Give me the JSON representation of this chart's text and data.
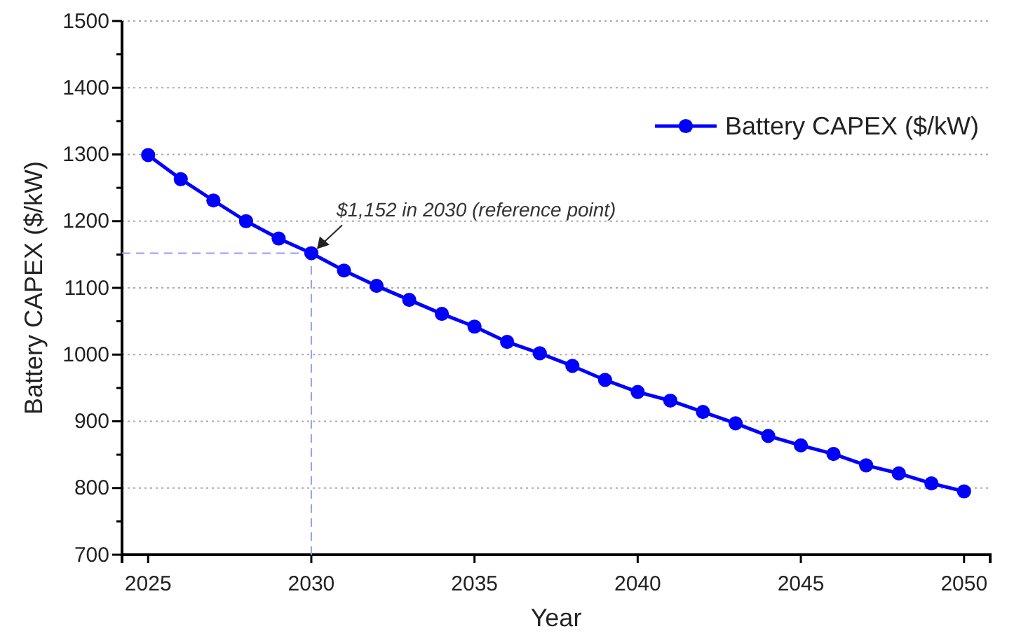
{
  "chart_data": {
    "type": "line",
    "xlabel": "Year",
    "ylabel": "Battery CAPEX ($/kW)",
    "x": [
      2025,
      2026,
      2027,
      2028,
      2029,
      2030,
      2031,
      2032,
      2033,
      2034,
      2035,
      2036,
      2037,
      2038,
      2039,
      2040,
      2041,
      2042,
      2043,
      2044,
      2045,
      2046,
      2047,
      2048,
      2049,
      2050
    ],
    "series": [
      {
        "name": "Battery CAPEX ($/kW)",
        "color": "#0000ff",
        "values": [
          1299,
          1263,
          1231,
          1200,
          1174,
          1152,
          1126,
          1103,
          1082,
          1061,
          1042,
          1019,
          1002,
          983,
          962,
          944,
          931,
          914,
          897,
          878,
          864,
          851,
          834,
          822,
          807,
          795
        ]
      }
    ],
    "xlim": [
      2024.2,
      2050.8
    ],
    "xticks": [
      2025,
      2030,
      2035,
      2040,
      2045,
      2050
    ],
    "ylim": [
      700,
      1500
    ],
    "yticks": [
      700,
      {
        "value": 750,
        "label": null
      },
      800,
      {
        "value": 850,
        "label": null
      },
      900,
      {
        "value": 950,
        "label": null
      },
      1000,
      {
        "value": 1050,
        "label": null
      },
      1100,
      {
        "value": 1150,
        "label": null
      },
      1200,
      {
        "value": 1250,
        "label": null
      },
      1300,
      {
        "value": 1350,
        "label": null
      },
      1400,
      {
        "value": 1450,
        "label": null
      },
      1500
    ],
    "grid": "y",
    "legend": "top right",
    "marker": "circle",
    "line_style": "solid",
    "ref_lines": [
      {
        "axis": "y",
        "value": 1152,
        "color": "#9999ff",
        "line_style": "dashed"
      },
      {
        "axis": "x",
        "value": 2030,
        "color": "#9999ff",
        "line_style": "dashed"
      }
    ],
    "annotations": [
      {
        "text": "$1,152 in 2030 (reference point)",
        "x": 2030,
        "y": 1152
      }
    ]
  }
}
